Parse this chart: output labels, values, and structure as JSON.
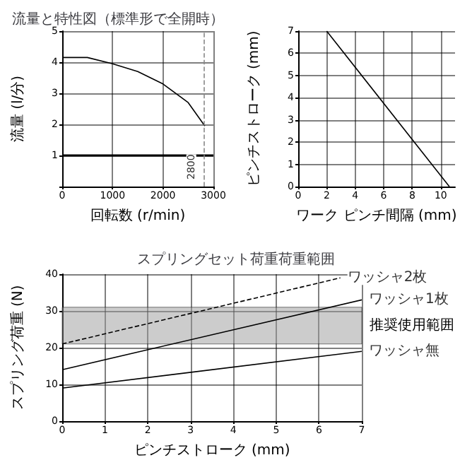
{
  "chart_data": [
    {
      "type": "line",
      "xlabel": "ワーク ピンチ間隔 (mm)",
      "ylabel": "ピンチストローク (mm)",
      "xlim": [
        0,
        11
      ],
      "xticks": [
        0,
        2,
        4,
        6,
        8,
        10
      ],
      "ylim": [
        0,
        7
      ],
      "yticks": [
        0,
        1,
        2,
        3,
        4,
        5,
        6,
        7
      ],
      "grid": true,
      "series": [
        {
          "color": "#000000",
          "x": [
            2,
            10.6
          ],
          "values": [
            7,
            0
          ]
        }
      ]
    },
    {
      "type": "line",
      "title": "流量と特性図（標準形で全開時）",
      "xlabel": "回転数 (r/min)",
      "ylabel": "流量 (l/分)",
      "xlim": [
        0,
        3000
      ],
      "xticks": [
        0,
        1000,
        2000,
        3000
      ],
      "ylim": [
        0,
        5
      ],
      "yticks": [
        {
          "value": 0,
          "label": null
        },
        1.0,
        2.0,
        3.0,
        4.0,
        5.0
      ],
      "grid": true,
      "ref_lines": [
        {
          "axis": "y",
          "value": 1,
          "color": "#000000"
        },
        {
          "axis": "x",
          "value": 2800,
          "label": "2800",
          "line_style": "dashed",
          "color": "#888888"
        }
      ],
      "series": [
        {
          "color": "#000000",
          "x": [
            0,
            500,
            1000,
            1500,
            2000,
            2500,
            2830
          ],
          "values": [
            4.15,
            4.15,
            3.95,
            3.7,
            3.3,
            2.7,
            1.95
          ]
        }
      ]
    },
    {
      "type": "line",
      "title": "スプリングセット荷重荷重範囲",
      "xlabel": "ピンチストローク (mm)",
      "ylabel": "スプリング荷重 (N)",
      "xlim": [
        0,
        7
      ],
      "xticks": [
        0,
        1,
        2,
        3,
        4,
        5,
        6,
        7
      ],
      "ylim": [
        0,
        40
      ],
      "yticks": [
        0,
        10,
        20,
        30,
        40
      ],
      "grid": true,
      "bands": [
        {
          "axis": "y",
          "from": 21,
          "to": 31,
          "label": "推奨使用範囲",
          "color": "#999999"
        }
      ],
      "series": [
        {
          "name": "ワッシャ2枚",
          "color": "#000000",
          "line_style": "dashed",
          "x": [
            0,
            6.5
          ],
          "values": [
            21,
            39
          ]
        },
        {
          "name": "ワッシャ1枚",
          "color": "#000000",
          "x": [
            0,
            7
          ],
          "values": [
            14,
            33
          ]
        },
        {
          "name": "ワッシャ無",
          "color": "#000000",
          "x": [
            0,
            7
          ],
          "values": [
            9,
            19
          ]
        }
      ]
    }
  ]
}
